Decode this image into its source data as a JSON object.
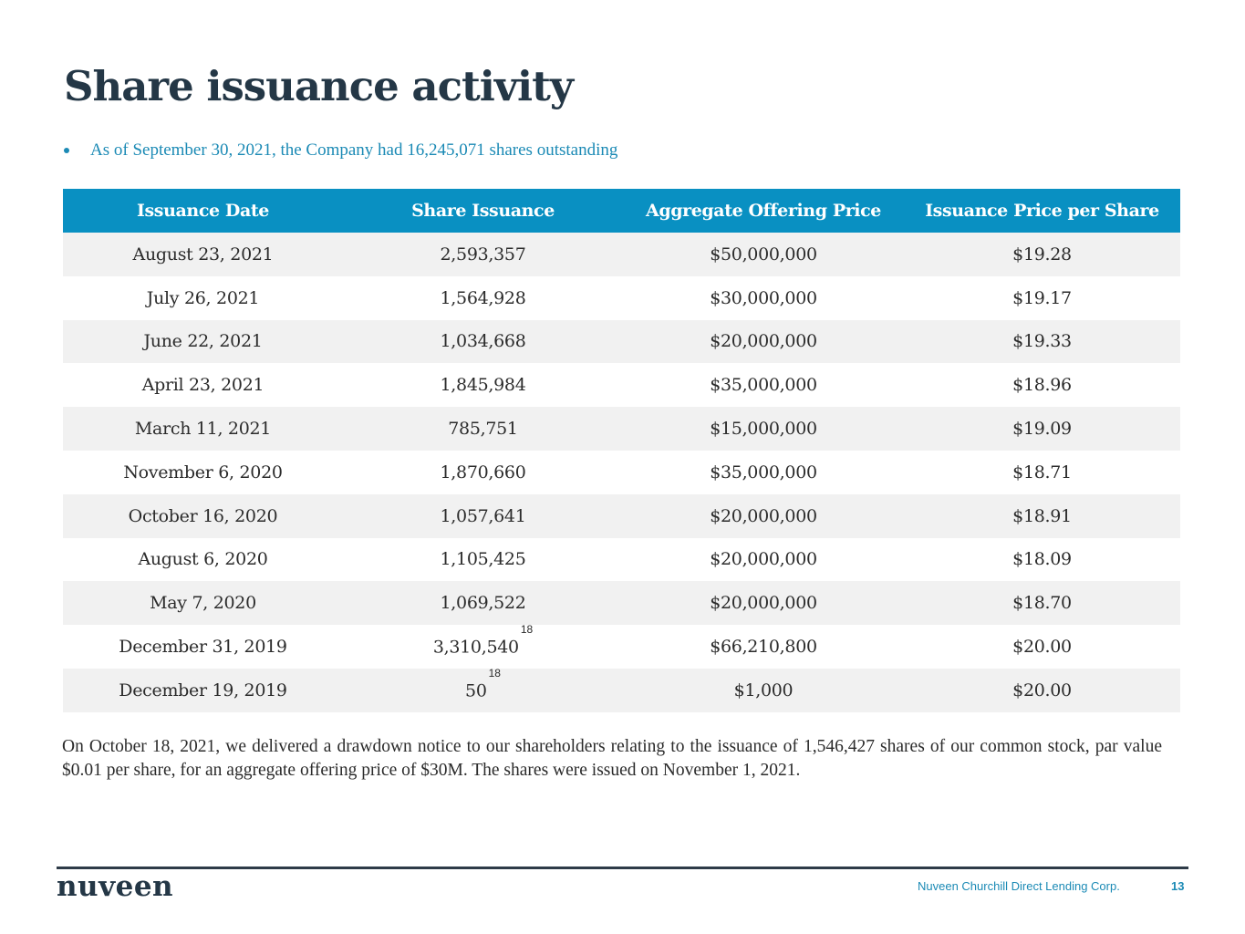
{
  "page": {
    "title": "Share issuance activity",
    "bullet": "As of September 30, 2021, the Company had 16,245,071 shares outstanding"
  },
  "table": {
    "headers": [
      "Issuance Date",
      "Share Issuance",
      "Aggregate Offering Price",
      "Issuance Price per Share"
    ],
    "rows": [
      {
        "date": "August 23, 2021",
        "shares": "2,593,357",
        "footnote": "",
        "aggregate": "$50,000,000",
        "price": "$19.28"
      },
      {
        "date": "July 26, 2021",
        "shares": "1,564,928",
        "footnote": "",
        "aggregate": "$30,000,000",
        "price": "$19.17"
      },
      {
        "date": "June 22, 2021",
        "shares": "1,034,668",
        "footnote": "",
        "aggregate": "$20,000,000",
        "price": "$19.33"
      },
      {
        "date": "April 23, 2021",
        "shares": "1,845,984",
        "footnote": "",
        "aggregate": "$35,000,000",
        "price": "$18.96"
      },
      {
        "date": "March 11, 2021",
        "shares": "785,751",
        "footnote": "",
        "aggregate": "$15,000,000",
        "price": "$19.09"
      },
      {
        "date": "November 6, 2020",
        "shares": "1,870,660",
        "footnote": "",
        "aggregate": "$35,000,000",
        "price": "$18.71"
      },
      {
        "date": "October 16, 2020",
        "shares": "1,057,641",
        "footnote": "",
        "aggregate": "$20,000,000",
        "price": "$18.91"
      },
      {
        "date": "August 6, 2020",
        "shares": "1,105,425",
        "footnote": "",
        "aggregate": "$20,000,000",
        "price": "$18.09"
      },
      {
        "date": "May 7, 2020",
        "shares": "1,069,522",
        "footnote": "",
        "aggregate": "$20,000,000",
        "price": "$18.70"
      },
      {
        "date": "December 31, 2019",
        "shares": "3,310,540",
        "footnote": "18",
        "aggregate": "$66,210,800",
        "price": "$20.00"
      },
      {
        "date": "December 19, 2019",
        "shares": "50",
        "footnote": "18",
        "aggregate": "$1,000",
        "price": "$20.00"
      }
    ]
  },
  "note": "On October 18, 2021, we delivered a drawdown notice to our shareholders relating to the issuance of 1,546,427 shares of our common stock, par value $0.01 per share, for an aggregate offering price of $30M.  The shares were issued on November 1, 2021.",
  "footer": {
    "logo": "nuveen",
    "company": "Nuveen Churchill Direct Lending Corp.",
    "page_number": "13"
  },
  "colors": {
    "header_bg": "#0990c2",
    "accent": "#1b8ab5",
    "title": "#243746",
    "row_shade": "#f1f1f1"
  }
}
